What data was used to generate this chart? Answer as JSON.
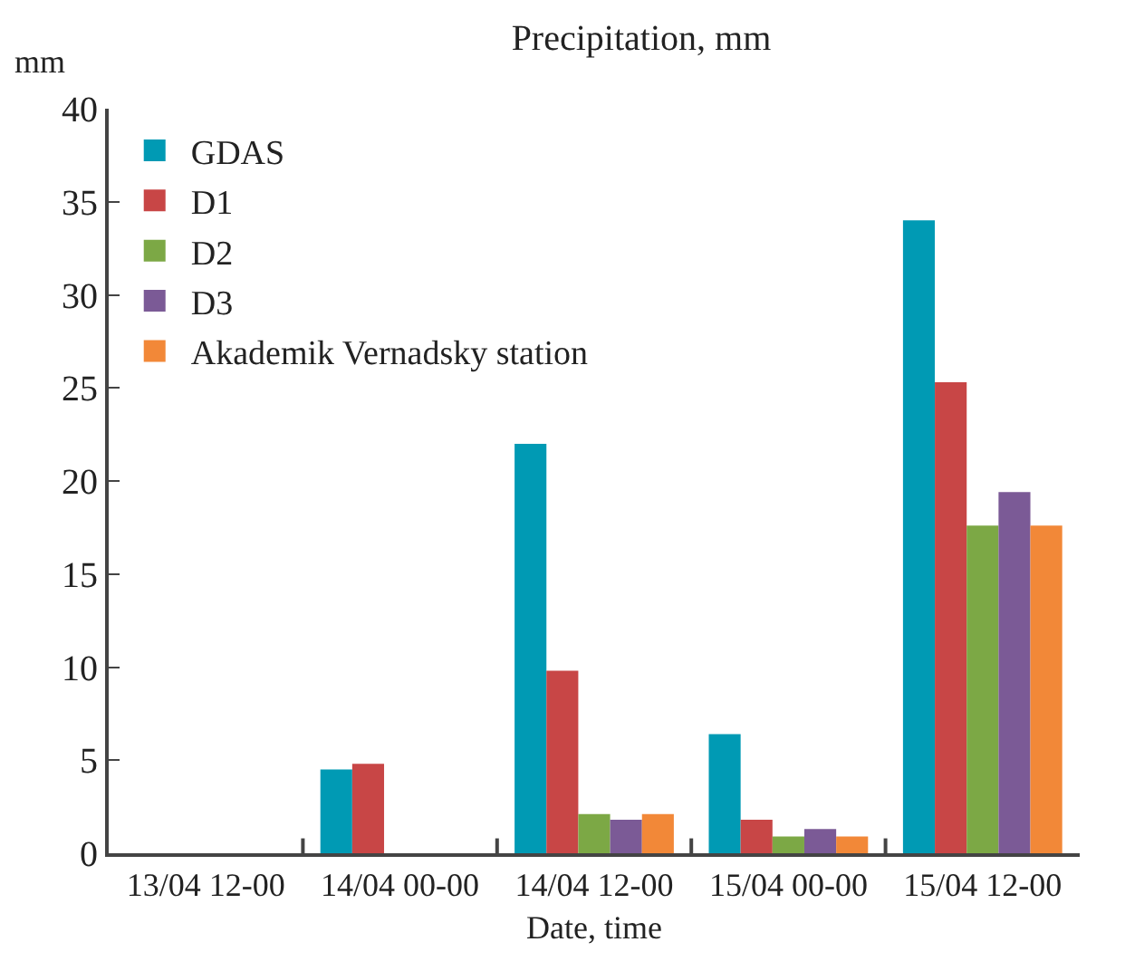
{
  "chart_data": {
    "type": "bar",
    "title": "Precipitation, mm",
    "ylabel": "mm",
    "xlabel": "Date, time",
    "categories": [
      "13/04 12-00",
      "14/04 00-00",
      "14/04 12-00",
      "15/04 00-00",
      "15/04 12-00"
    ],
    "series": [
      {
        "name": "GDAS",
        "color": "#009ab4",
        "values": [
          0,
          4.5,
          22.0,
          6.4,
          34.0
        ]
      },
      {
        "name": "D1",
        "color": "#c84646",
        "values": [
          0,
          4.8,
          9.8,
          1.8,
          25.3
        ]
      },
      {
        "name": "D2",
        "color": "#7ca845",
        "values": [
          0,
          null,
          2.1,
          0.9,
          17.6
        ]
      },
      {
        "name": "D3",
        "color": "#7b5a96",
        "values": [
          0,
          null,
          1.8,
          1.3,
          19.4
        ]
      },
      {
        "name": "Akademik Vernadsky station",
        "color": "#f28838",
        "values": [
          0,
          null,
          2.1,
          0.9,
          17.6
        ]
      }
    ],
    "ylim": [
      0,
      40
    ],
    "yticks": [
      0,
      5,
      10,
      15,
      20,
      25,
      30,
      35,
      40
    ],
    "legend": "top left"
  }
}
